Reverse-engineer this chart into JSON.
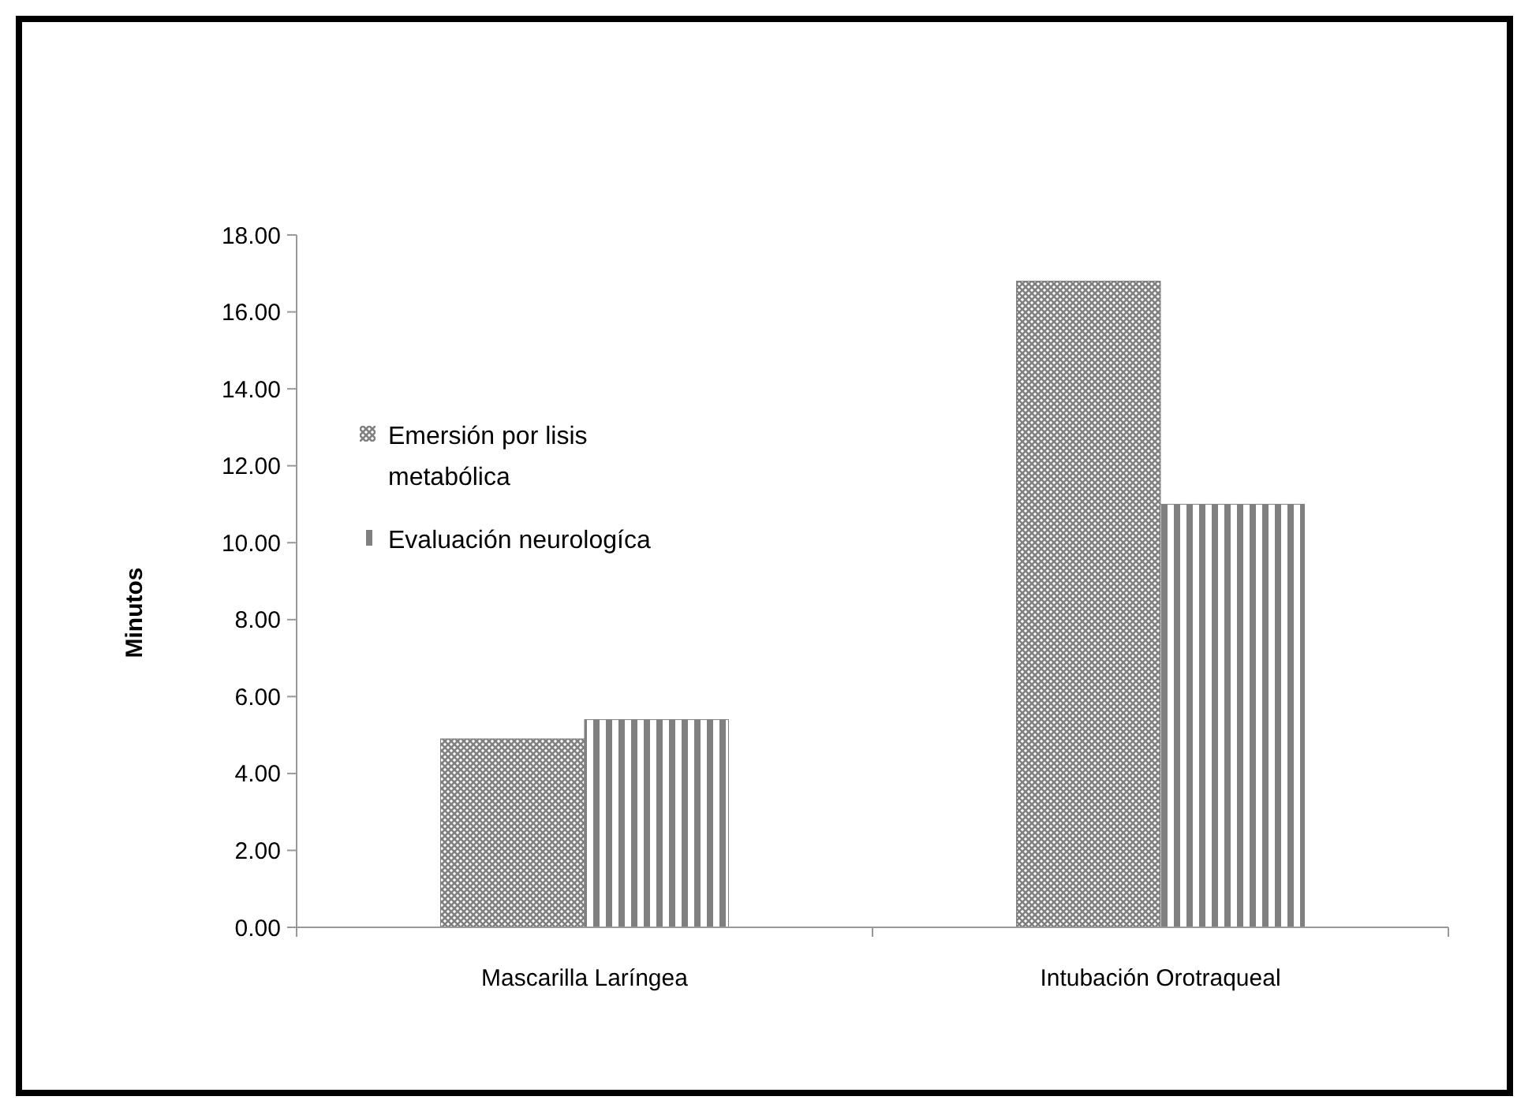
{
  "chart_data": {
    "type": "bar",
    "ylabel": "Minutos",
    "categories": [
      "Mascarilla Laríngea",
      "Intubación Orotraqueal"
    ],
    "series": [
      {
        "name": "Emersión por lisis metabólica",
        "color": "#808080",
        "values": [
          4.9,
          16.8
        ]
      },
      {
        "name": "Evaluación neurologíca",
        "color": "#808080",
        "values": [
          5.4,
          11.0
        ]
      }
    ],
    "ylim": [
      0,
      18
    ],
    "yticks": [
      {
        "value": 0,
        "label": "0.00"
      },
      {
        "value": 2,
        "label": "2.00"
      },
      {
        "value": 4,
        "label": "4.00"
      },
      {
        "value": 6,
        "label": "6.00"
      },
      {
        "value": 8,
        "label": "8.00"
      },
      {
        "value": 10,
        "label": "10.00"
      },
      {
        "value": 12,
        "label": "12.00"
      },
      {
        "value": 14,
        "label": "14.00"
      },
      {
        "value": 16,
        "label": "16.00"
      },
      {
        "value": 18,
        "label": "18.00"
      }
    ],
    "grid": false,
    "legend": "top left"
  }
}
